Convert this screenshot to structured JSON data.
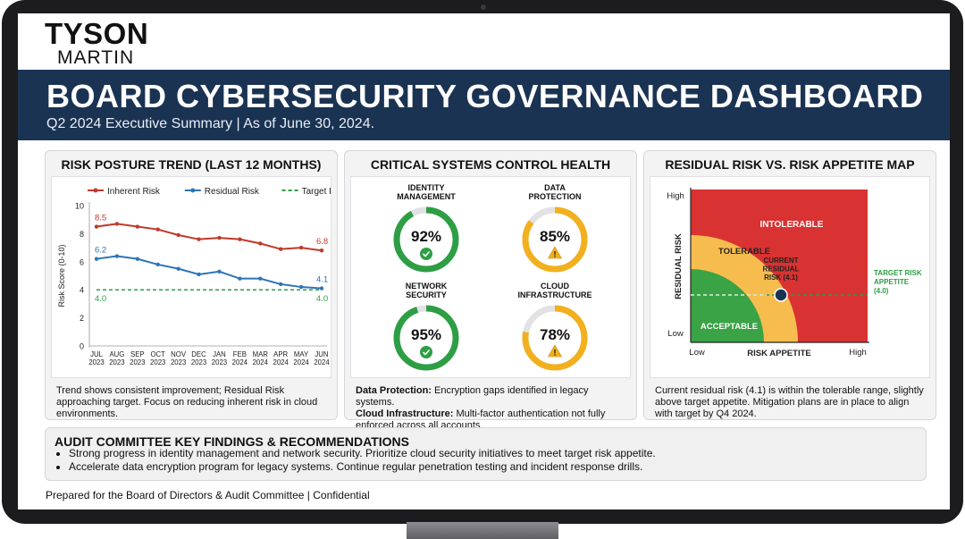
{
  "brand": {
    "line1": "TYSON",
    "line2": "MARTIN"
  },
  "header": {
    "title": "BOARD CYBERSECURITY GOVERNANCE DASHBOARD",
    "subtitle": "Q2 2024 Executive Summary | As of June 30, 2024."
  },
  "risk_trend": {
    "title": "RISK POSTURE TREND (LAST 12 MONTHS)",
    "note": "Trend shows consistent improvement; Residual Risk approaching target. Focus on reducing inherent risk in cloud environments."
  },
  "control_health": {
    "title": "CRITICAL SYSTEMS CONTROL HEALTH",
    "systems": [
      {
        "name": "IDENTITY MANAGEMENT",
        "name_lines": [
          "IDENTITY",
          "MANAGEMENT"
        ],
        "value": "92%",
        "level": 0.92,
        "color": "#2e9e44",
        "status": "check"
      },
      {
        "name": "DATA PROTECTION",
        "name_lines": [
          "DATA",
          "PROTECTION"
        ],
        "value": "85%",
        "level": 0.85,
        "color": "#f2b01e",
        "status": "warning"
      },
      {
        "name": "NETWORK SECURITY",
        "name_lines": [
          "NETWORK",
          "SECURITY"
        ],
        "value": "95%",
        "level": 0.95,
        "color": "#2e9e44",
        "status": "check"
      },
      {
        "name": "CLOUD INFRASTRUCTURE",
        "name_lines": [
          "CLOUD",
          "INFRASTRUCTURE"
        ],
        "value": "78%",
        "level": 0.78,
        "color": "#f2b01e",
        "status": "warning"
      }
    ],
    "note1_label": "Data Protection:",
    "note1_text": " Encryption gaps identified in legacy systems.",
    "note2_label": "Cloud Infrastructure:",
    "note2_text": " Multi-factor authentication not fully enforced across all accounts."
  },
  "risk_map": {
    "title": "RESIDUAL RISK VS. RISK APPETITE MAP",
    "note": "Current residual risk (4.1) is within the tolerable range, slightly above target appetite. Mitigation plans are in place to align with target by Q4 2024.",
    "y_axis_label": "RESIDUAL RISK",
    "x_axis_label": "RISK APPETITE",
    "y_high": "High",
    "y_low": "Low",
    "x_low": "Low",
    "x_high": "High",
    "zones": {
      "acceptable": "ACCEPTABLE",
      "tolerable": "TOLERABLE",
      "intolerable": "INTOLERABLE"
    },
    "current_label_lines": [
      "CURRENT",
      "RESIDUAL",
      "RISK (4.1)"
    ],
    "target_label_lines": [
      "TARGET RISK",
      "APPETITE",
      "(4.0)"
    ],
    "zone_colors": {
      "acceptable": "#3aa346",
      "tolerable": "#f6bd4e",
      "intolerable": "#d93232"
    }
  },
  "findings": {
    "title": "AUDIT COMMITTEE KEY FINDINGS & RECOMMENDATIONS",
    "items": [
      "Strong progress in identity management and network security. Prioritize cloud security initiatives to meet target risk appetite.",
      "Accelerate data encryption program for legacy systems. Continue regular penetration testing and incident response drills."
    ]
  },
  "footer": {
    "text": "Prepared for the Board of Directors & Audit Committee | Confidential"
  },
  "chart_data": {
    "type": "line",
    "title": "",
    "xlabel": "",
    "ylabel": "Risk Score (0-10)",
    "ylim": [
      0,
      10
    ],
    "yticks": [
      0,
      2,
      4,
      6,
      8,
      10
    ],
    "categories": [
      "JUL 2023",
      "AUG 2023",
      "SEP 2023",
      "OCT 2023",
      "NOV 2023",
      "DEC 2023",
      "JAN 2023",
      "FEB 2024",
      "MAR 2024",
      "APR 2024",
      "MAY 2024",
      "JUN 2024"
    ],
    "series": [
      {
        "name": "Inherent Risk",
        "color": "#c0392b",
        "values": [
          8.5,
          8.7,
          8.5,
          8.3,
          7.9,
          7.6,
          7.7,
          7.6,
          7.3,
          6.9,
          7.0,
          6.8
        ],
        "labels": [
          {
            "index": 0,
            "text": "8.5"
          },
          {
            "index": 11,
            "text": "6.8"
          }
        ]
      },
      {
        "name": "Residual Risk",
        "color": "#2e75b6",
        "values": [
          6.2,
          6.4,
          6.2,
          5.8,
          5.5,
          5.1,
          5.3,
          4.8,
          4.8,
          4.4,
          4.2,
          4.1
        ],
        "labels": [
          {
            "index": 0,
            "text": "6.2"
          },
          {
            "index": 11,
            "text": "4.1"
          }
        ]
      },
      {
        "name": "Target Risk",
        "color": "#2e9e44",
        "dashed": true,
        "values": [
          4.0,
          4.0,
          4.0,
          4.0,
          4.0,
          4.0,
          4.0,
          4.0,
          4.0,
          4.0,
          4.0,
          4.0
        ],
        "labels": [
          {
            "index": 0,
            "text": "4.0"
          },
          {
            "index": 11,
            "text": "4.0"
          }
        ]
      }
    ],
    "legend": "top"
  }
}
